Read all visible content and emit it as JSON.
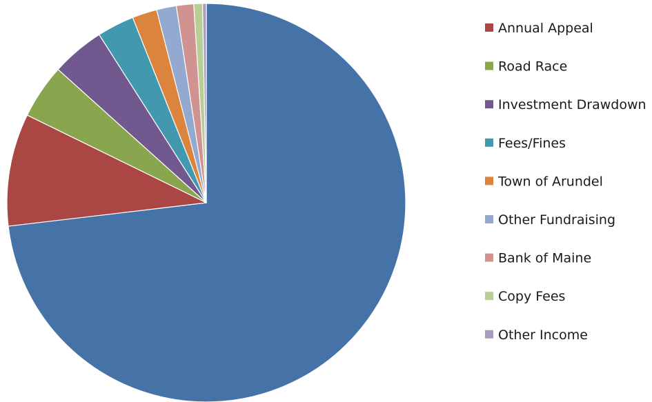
{
  "chart_data": {
    "type": "pie",
    "title": "",
    "legend_position": "right",
    "start_angle_deg": 0,
    "direction": "clockwise",
    "slices": [
      {
        "label": "",
        "value": 72.9,
        "color": "#4572A7"
      },
      {
        "label": "Annual Appeal",
        "value": 9.1,
        "color": "#AA4643"
      },
      {
        "label": "Road Race",
        "value": 4.4,
        "color": "#89A54E"
      },
      {
        "label": "Investment Drawdown",
        "value": 4.3,
        "color": "#71588F"
      },
      {
        "label": "Fees/Fines",
        "value": 3.0,
        "color": "#4198AF"
      },
      {
        "label": "Town of Arundel",
        "value": 2.0,
        "color": "#DB843D"
      },
      {
        "label": "Other Fundraising",
        "value": 1.6,
        "color": "#93A9CF"
      },
      {
        "label": "Bank of Maine",
        "value": 1.4,
        "color": "#D19392"
      },
      {
        "label": "Copy Fees",
        "value": 0.7,
        "color": "#B9CD96"
      },
      {
        "label": "Other Income",
        "value": 0.3,
        "color": "#A99BBD"
      }
    ]
  }
}
